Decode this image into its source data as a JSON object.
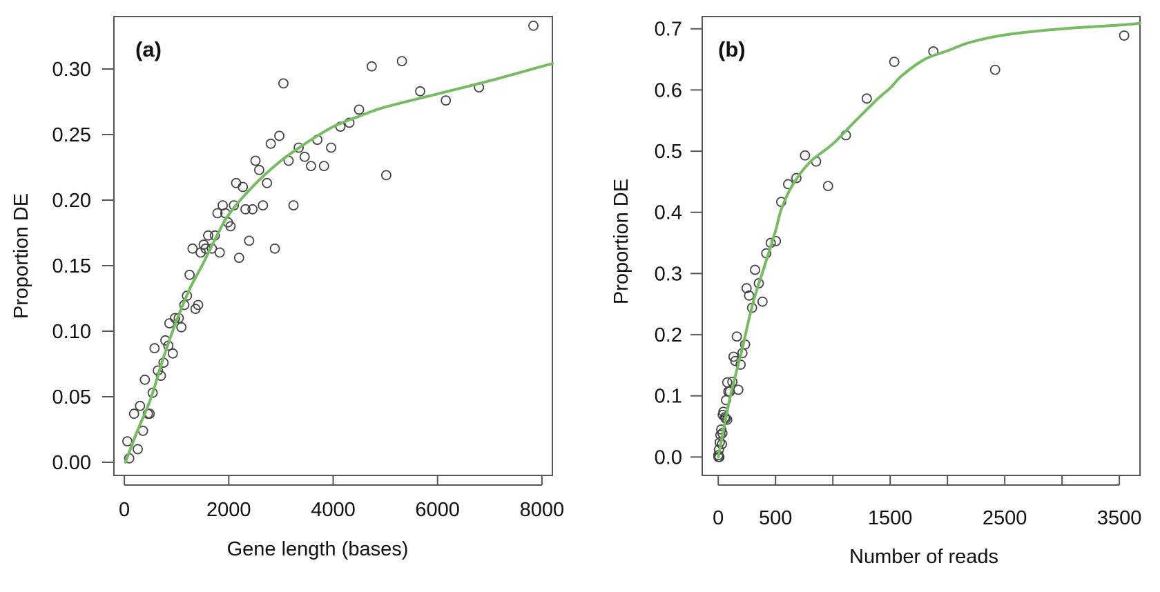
{
  "chart_data": [
    {
      "type": "scatter",
      "panel_label": "(a)",
      "xlabel": "Gene length (bases)",
      "ylabel": "Proportion DE",
      "xlim": [
        -200,
        8200
      ],
      "ylim": [
        -0.01,
        0.34
      ],
      "xticks": [
        0,
        2000,
        4000,
        6000,
        8000
      ],
      "xtick_labels": [
        "0",
        "2000",
        "4000",
        "6000",
        "8000"
      ],
      "yticks": [
        0.0,
        0.05,
        0.1,
        0.15,
        0.2,
        0.25,
        0.3
      ],
      "ytick_labels": [
        "0.00",
        "0.05",
        "0.10",
        "0.15",
        "0.20",
        "0.25",
        "0.30"
      ],
      "grid": false,
      "point_color": "#444444",
      "fit_color": "#76bb62",
      "points": [
        [
          57,
          0.016
        ],
        [
          93,
          0.003
        ],
        [
          257,
          0.01
        ],
        [
          186,
          0.037
        ],
        [
          300,
          0.043
        ],
        [
          357,
          0.024
        ],
        [
          393,
          0.063
        ],
        [
          450,
          0.037
        ],
        [
          485,
          0.037
        ],
        [
          542,
          0.053
        ],
        [
          578,
          0.087
        ],
        [
          642,
          0.07
        ],
        [
          700,
          0.066
        ],
        [
          750,
          0.076
        ],
        [
          785,
          0.093
        ],
        [
          842,
          0.089
        ],
        [
          864,
          0.106
        ],
        [
          928,
          0.083
        ],
        [
          971,
          0.11
        ],
        [
          1042,
          0.11
        ],
        [
          1092,
          0.103
        ],
        [
          1149,
          0.12
        ],
        [
          1199,
          0.127
        ],
        [
          1249,
          0.143
        ],
        [
          1306,
          0.163
        ],
        [
          1363,
          0.117
        ],
        [
          1413,
          0.12
        ],
        [
          1463,
          0.16
        ],
        [
          1520,
          0.166
        ],
        [
          1556,
          0.163
        ],
        [
          1606,
          0.173
        ],
        [
          1677,
          0.163
        ],
        [
          1734,
          0.173
        ],
        [
          1784,
          0.19
        ],
        [
          1827,
          0.16
        ],
        [
          1884,
          0.196
        ],
        [
          1934,
          0.19
        ],
        [
          1984,
          0.183
        ],
        [
          2034,
          0.18
        ],
        [
          2098,
          0.196
        ],
        [
          2141,
          0.213
        ],
        [
          2198,
          0.156
        ],
        [
          2270,
          0.21
        ],
        [
          2320,
          0.193
        ],
        [
          2391,
          0.169
        ],
        [
          2455,
          0.193
        ],
        [
          2512,
          0.23
        ],
        [
          2583,
          0.223
        ],
        [
          2655,
          0.196
        ],
        [
          2733,
          0.213
        ],
        [
          2805,
          0.243
        ],
        [
          2883,
          0.163
        ],
        [
          2969,
          0.249
        ],
        [
          3047,
          0.289
        ],
        [
          3147,
          0.23
        ],
        [
          3240,
          0.196
        ],
        [
          3340,
          0.24
        ],
        [
          3454,
          0.233
        ],
        [
          3576,
          0.226
        ],
        [
          3697,
          0.246
        ],
        [
          3825,
          0.226
        ],
        [
          3961,
          0.24
        ],
        [
          4139,
          0.256
        ],
        [
          4311,
          0.259
        ],
        [
          4496,
          0.269
        ],
        [
          4739,
          0.302
        ],
        [
          5017,
          0.219
        ],
        [
          5317,
          0.306
        ],
        [
          5667,
          0.283
        ],
        [
          6159,
          0.276
        ],
        [
          6794,
          0.286
        ],
        [
          7836,
          0.333
        ]
      ],
      "fit_curve": [
        [
          20,
          0.0
        ],
        [
          250,
          0.024
        ],
        [
          500,
          0.048
        ],
        [
          750,
          0.08
        ],
        [
          1000,
          0.108
        ],
        [
          1250,
          0.132
        ],
        [
          1500,
          0.151
        ],
        [
          1750,
          0.171
        ],
        [
          2000,
          0.189
        ],
        [
          2500,
          0.212
        ],
        [
          3000,
          0.23
        ],
        [
          3500,
          0.244
        ],
        [
          4000,
          0.256
        ],
        [
          4500,
          0.264
        ],
        [
          5000,
          0.271
        ],
        [
          6000,
          0.281
        ],
        [
          7000,
          0.291
        ],
        [
          8000,
          0.302
        ],
        [
          8200,
          0.304
        ]
      ]
    },
    {
      "type": "scatter",
      "panel_label": "(b)",
      "xlabel": "Number of reads",
      "ylabel": "Proportion DE",
      "xlim": [
        -140,
        3680
      ],
      "ylim": [
        -0.03,
        0.72
      ],
      "xticks": [
        0,
        500,
        1000,
        1500,
        2000,
        2500,
        3000,
        3500
      ],
      "xtick_labels": [
        "0",
        "500",
        "",
        "1500",
        "",
        "2500",
        "",
        "3500"
      ],
      "yticks": [
        0.0,
        0.1,
        0.2,
        0.3,
        0.4,
        0.5,
        0.6,
        0.7
      ],
      "ytick_labels": [
        "0.0",
        "0.1",
        "0.2",
        "0.3",
        "0.4",
        "0.5",
        "0.6",
        "0.7"
      ],
      "grid": false,
      "point_color": "#444444",
      "fit_color": "#76bb62",
      "points": [
        [
          3542,
          0.689
        ],
        [
          2416,
          0.633
        ],
        [
          1877,
          0.663
        ],
        [
          1536,
          0.646
        ],
        [
          1296,
          0.586
        ],
        [
          1114,
          0.526
        ],
        [
          958,
          0.443
        ],
        [
          854,
          0.483
        ],
        [
          757,
          0.493
        ],
        [
          682,
          0.456
        ],
        [
          610,
          0.446
        ],
        [
          549,
          0.417
        ],
        [
          503,
          0.353
        ],
        [
          458,
          0.35
        ],
        [
          419,
          0.333
        ],
        [
          386,
          0.254
        ],
        [
          354,
          0.284
        ],
        [
          321,
          0.306
        ],
        [
          295,
          0.244
        ],
        [
          269,
          0.264
        ],
        [
          247,
          0.276
        ],
        [
          234,
          0.184
        ],
        [
          211,
          0.17
        ],
        [
          195,
          0.151
        ],
        [
          162,
          0.197
        ],
        [
          133,
          0.164
        ],
        [
          149,
          0.157
        ],
        [
          175,
          0.11
        ],
        [
          123,
          0.123
        ],
        [
          101,
          0.107
        ],
        [
          78,
          0.122
        ],
        [
          88,
          0.107
        ],
        [
          68,
          0.093
        ],
        [
          78,
          0.061
        ],
        [
          58,
          0.065
        ],
        [
          45,
          0.074
        ],
        [
          39,
          0.069
        ],
        [
          65,
          0.063
        ],
        [
          26,
          0.045
        ],
        [
          36,
          0.039
        ],
        [
          19,
          0.036
        ],
        [
          32,
          0.021
        ],
        [
          13,
          0.024
        ],
        [
          6,
          0.012
        ],
        [
          0,
          0.003
        ],
        [
          10,
          0.0
        ],
        [
          2,
          0.0
        ]
      ],
      "fit_curve": [
        [
          0,
          0.0
        ],
        [
          100,
          0.095
        ],
        [
          200,
          0.17
        ],
        [
          300,
          0.25
        ],
        [
          400,
          0.31
        ],
        [
          500,
          0.37
        ],
        [
          550,
          0.405
        ],
        [
          650,
          0.445
        ],
        [
          800,
          0.482
        ],
        [
          1000,
          0.512
        ],
        [
          1200,
          0.55
        ],
        [
          1400,
          0.587
        ],
        [
          1500,
          0.603
        ],
        [
          1600,
          0.623
        ],
        [
          1800,
          0.65
        ],
        [
          2000,
          0.664
        ],
        [
          2200,
          0.678
        ],
        [
          2500,
          0.69
        ],
        [
          3000,
          0.7
        ],
        [
          3500,
          0.706
        ],
        [
          3680,
          0.709
        ]
      ]
    }
  ]
}
